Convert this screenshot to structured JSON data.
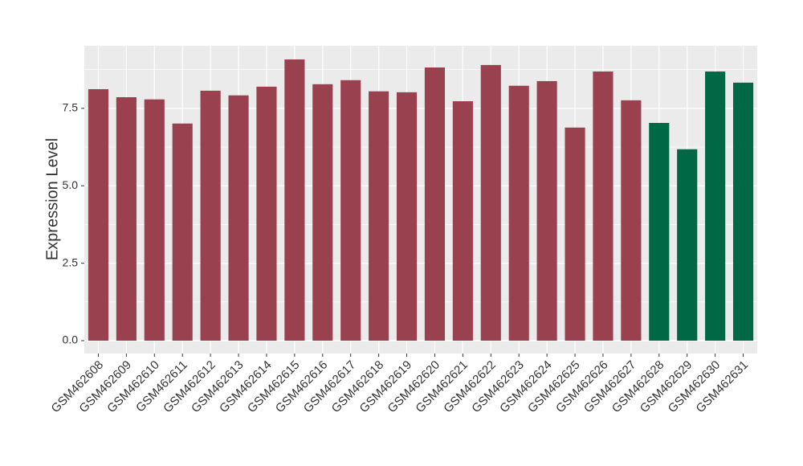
{
  "chart_data": {
    "type": "bar",
    "y_label": "Expression Level",
    "categories": [
      "GSM462608",
      "GSM462609",
      "GSM462610",
      "GSM462611",
      "GSM462612",
      "GSM462613",
      "GSM462614",
      "GSM462615",
      "GSM462616",
      "GSM462617",
      "GSM462618",
      "GSM462619",
      "GSM462620",
      "GSM462621",
      "GSM462622",
      "GSM462623",
      "GSM462624",
      "GSM462625",
      "GSM462626",
      "GSM462627",
      "GSM462628",
      "GSM462629",
      "GSM462630",
      "GSM462631"
    ],
    "values": [
      8.12,
      7.86,
      7.79,
      7.01,
      8.07,
      7.92,
      8.2,
      9.08,
      8.28,
      8.41,
      8.05,
      8.02,
      8.82,
      7.73,
      8.9,
      8.23,
      8.38,
      6.88,
      8.69,
      7.76,
      7.03,
      6.18,
      8.69,
      8.33
    ],
    "colors": [
      "#9a4150",
      "#9a4150",
      "#9a4150",
      "#9a4150",
      "#9a4150",
      "#9a4150",
      "#9a4150",
      "#9a4150",
      "#9a4150",
      "#9a4150",
      "#9a4150",
      "#9a4150",
      "#9a4150",
      "#9a4150",
      "#9a4150",
      "#9a4150",
      "#9a4150",
      "#9a4150",
      "#9a4150",
      "#9a4150",
      "#006845",
      "#006845",
      "#006845",
      "#006845"
    ],
    "ylim": [
      -0.415,
      9.52
    ],
    "yticks": [
      {
        "value": 0,
        "label": "0.0"
      },
      {
        "value": 2.5,
        "label": "2.5"
      },
      {
        "value": 5,
        "label": "5.0"
      },
      {
        "value": 7.5,
        "label": "7.5"
      }
    ],
    "grid": true
  }
}
